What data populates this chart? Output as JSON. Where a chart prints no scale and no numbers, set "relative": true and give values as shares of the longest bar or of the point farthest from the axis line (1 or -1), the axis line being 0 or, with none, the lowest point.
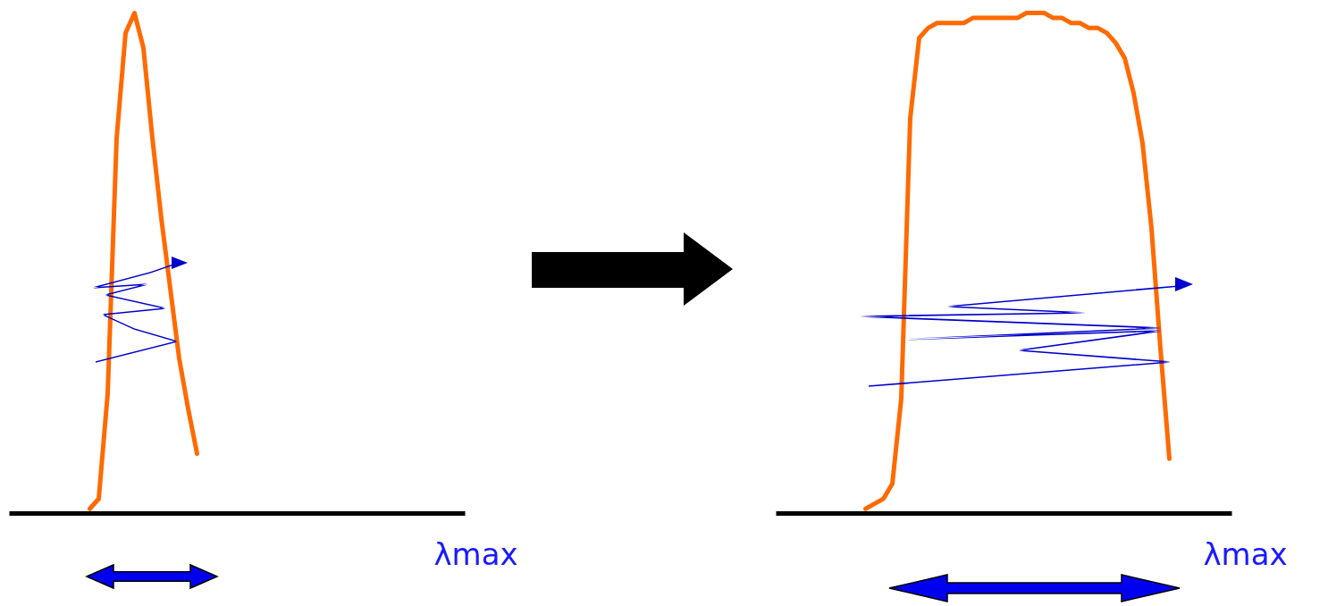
{
  "chart_data": [
    {
      "type": "line",
      "relative": true,
      "annotations": [
        "λmax"
      ],
      "categories": [
        null,
        null,
        null,
        null,
        null,
        null,
        null,
        null,
        null,
        null,
        null,
        null,
        null,
        null,
        null,
        null,
        null,
        null,
        null,
        null,
        null,
        null,
        null,
        null,
        null,
        null,
        null,
        null,
        null,
        null,
        null,
        null,
        null,
        null,
        null,
        null,
        null,
        null,
        null,
        null,
        null,
        null,
        null,
        null,
        null,
        null,
        null,
        null,
        null,
        null,
        null,
        null
      ],
      "series": [
        {
          "color": "#ff6a00",
          "values": [
            null,
            null,
            null,
            null,
            null,
            null,
            null,
            null,
            null,
            0.01,
            0.03,
            0.24,
            0.75,
            0.96,
            1.0,
            0.93,
            0.75,
            0.59,
            0.45,
            0.31,
            0.21,
            0.12,
            null,
            null,
            null,
            null,
            null,
            null,
            null,
            null,
            null,
            null,
            null,
            null,
            null,
            null,
            null,
            null,
            null,
            null,
            null,
            null,
            null,
            null,
            null,
            null,
            null,
            null,
            null,
            null,
            null,
            null
          ]
        }
      ]
    },
    {
      "type": "line",
      "relative": true,
      "annotations": [
        "λmax"
      ],
      "categories": [
        null,
        null,
        null,
        null,
        null,
        null,
        null,
        null,
        null,
        null,
        null,
        null,
        null,
        null,
        null,
        null,
        null,
        null,
        null,
        null,
        null,
        null,
        null,
        null,
        null,
        null,
        null,
        null,
        null,
        null,
        null,
        null,
        null,
        null,
        null,
        null,
        null,
        null,
        null,
        null,
        null,
        null,
        null,
        null,
        null,
        null,
        null,
        null,
        null,
        null,
        null,
        null
      ],
      "series": [
        {
          "color": "#ff6a00",
          "values": [
            null,
            null,
            null,
            null,
            null,
            null,
            null,
            null,
            null,
            null,
            0.01,
            0.02,
            0.03,
            0.06,
            0.23,
            0.79,
            0.95,
            0.97,
            0.98,
            0.98,
            0.98,
            0.98,
            0.99,
            0.99,
            0.99,
            0.99,
            0.99,
            0.99,
            1.0,
            1.0,
            1.0,
            0.99,
            0.99,
            0.98,
            0.98,
            0.97,
            0.97,
            0.96,
            0.94,
            0.91,
            0.84,
            0.74,
            0.57,
            0.33,
            0.11,
            null,
            null,
            null,
            null,
            null,
            null,
            null
          ]
        }
      ]
    }
  ]
}
